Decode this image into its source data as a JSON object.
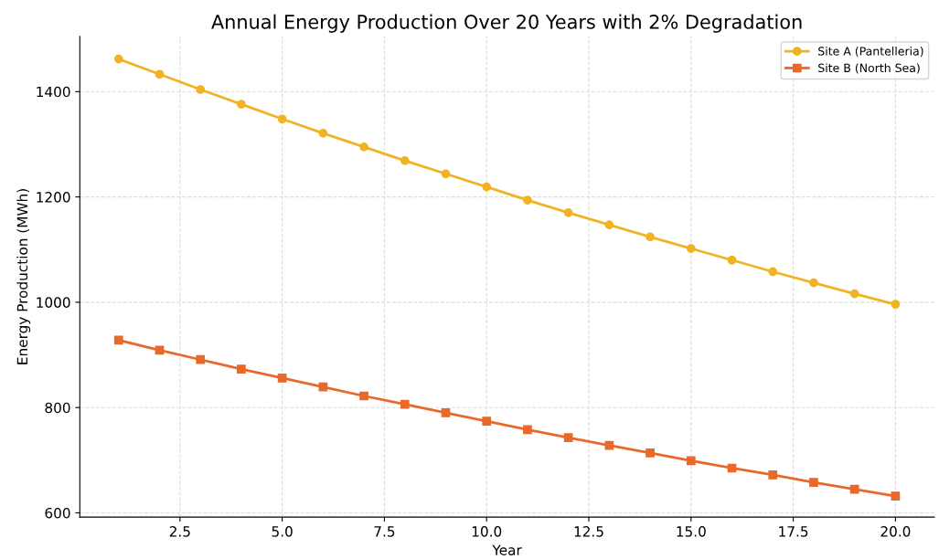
{
  "chart_data": {
    "type": "line",
    "title": "Annual Energy Production Over 20 Years with 2% Degradation",
    "xlabel": "Year",
    "ylabel": "Energy Production (MWh)",
    "x": [
      1,
      2,
      3,
      4,
      5,
      6,
      7,
      8,
      9,
      10,
      11,
      12,
      13,
      14,
      15,
      16,
      17,
      18,
      19,
      20
    ],
    "series": [
      {
        "name": "Site A (Pantelleria)",
        "color": "#f0b323",
        "marker": "circle",
        "values": [
          1462,
          1433,
          1404,
          1376,
          1348,
          1321,
          1295,
          1269,
          1244,
          1219,
          1194,
          1170,
          1147,
          1124,
          1102,
          1080,
          1058,
          1037,
          1016,
          996
        ]
      },
      {
        "name": "Site B (North Sea)",
        "color": "#e8692a",
        "marker": "square",
        "values": [
          928,
          909,
          891,
          873,
          856,
          839,
          822,
          806,
          790,
          774,
          758,
          743,
          728,
          714,
          699,
          685,
          672,
          658,
          645,
          632
        ]
      }
    ],
    "xlim": [
      0.05,
      20.95
    ],
    "ylim": [
      592,
      1505
    ],
    "xticks": [
      {
        "value": 2.5,
        "label": "2.5"
      },
      {
        "value": 5,
        "label": "5.0"
      },
      {
        "value": 7.5,
        "label": "7.5"
      },
      {
        "value": 10,
        "label": "10.0"
      },
      {
        "value": 12.5,
        "label": "12.5"
      },
      {
        "value": 15,
        "label": "15.0"
      },
      {
        "value": 17.5,
        "label": "17.5"
      },
      {
        "value": 20,
        "label": "20.0"
      }
    ],
    "yticks": [
      600,
      800,
      1000,
      1200,
      1400
    ],
    "grid": true,
    "legend": "top right",
    "line_style": "solid"
  }
}
